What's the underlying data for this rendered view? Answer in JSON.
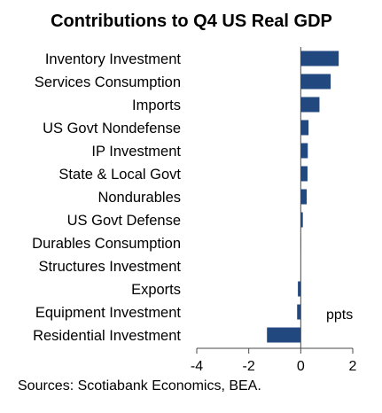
{
  "chart_data": {
    "type": "bar",
    "orientation": "horizontal",
    "title": "Contributions to Q4 US Real GDP",
    "categories": [
      "Inventory Investment",
      "Services Consumption",
      "Imports",
      "US Govt Nondefense",
      "IP Investment",
      "State & Local Govt",
      "Nondurables",
      "US Govt Defense",
      "Durables Consumption",
      "Structures Investment",
      "Exports",
      "Equipment Investment",
      "Residential Investment"
    ],
    "values": [
      1.46,
      1.15,
      0.72,
      0.3,
      0.27,
      0.26,
      0.23,
      0.08,
      0.01,
      0.0,
      -0.11,
      -0.14,
      -1.3
    ],
    "xlim": [
      -4,
      2
    ],
    "xticks": [
      "-4",
      "-2",
      "0",
      "2"
    ],
    "unit_label": "ppts",
    "bar_color": "#22497f",
    "grid": false,
    "legend": "none"
  },
  "source": "Sources: Scotiabank Economics, BEA."
}
